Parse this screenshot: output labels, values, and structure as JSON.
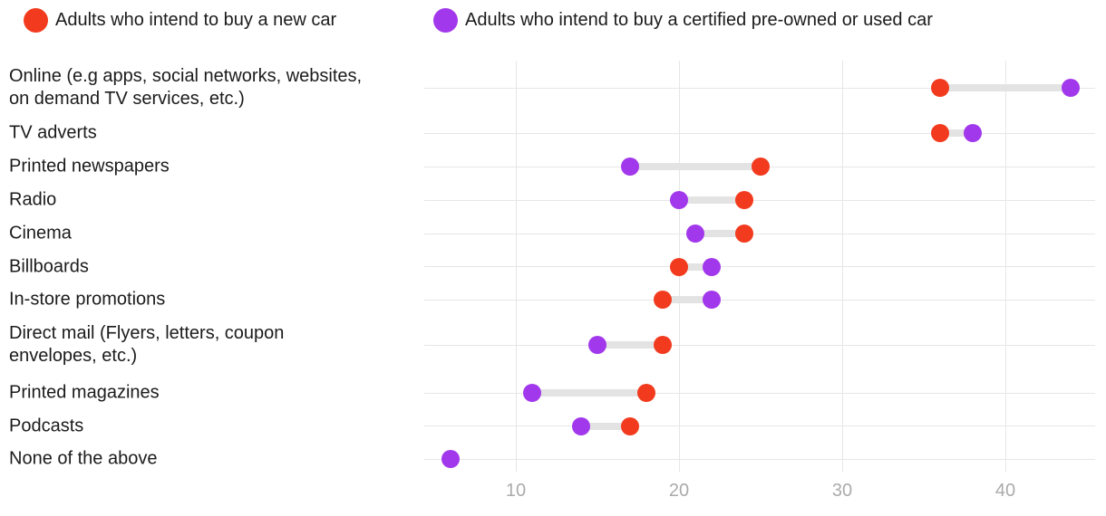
{
  "legend": [
    {
      "label": "Adults who intend to buy a new car",
      "color": "#f23b1e"
    },
    {
      "label": "Adults who intend to buy a certified pre-owned or used car",
      "color": "#a238eb"
    }
  ],
  "chart_data": {
    "type": "scatter",
    "variant": "dumbbell",
    "title": "",
    "xlabel": "",
    "ylabel": "",
    "categories": [
      "Online (e.g apps, social networks, websites, on demand TV services, etc.)",
      "TV adverts",
      "Printed newspapers",
      "Radio",
      "Cinema",
      "Billboards",
      "In-store promotions",
      "Direct mail (Flyers, letters, coupon envelopes, etc.)",
      "Printed magazines",
      "Podcasts",
      "None of the above"
    ],
    "series": [
      {
        "name": "Adults who intend to buy a new car",
        "color": "#f23b1e",
        "values": [
          36,
          36,
          25,
          24,
          24,
          20,
          19,
          19,
          18,
          17,
          null
        ]
      },
      {
        "name": "Adults who intend to buy a certified pre-owned or used car",
        "color": "#a238eb",
        "values": [
          44,
          38,
          17,
          20,
          21,
          22,
          22,
          15,
          11,
          14,
          6
        ]
      }
    ],
    "x_ticks": [
      10,
      20,
      30,
      40
    ],
    "xlim": [
      4.4,
      45.5
    ],
    "grid": "vertical-ticks-and-horizontal-row-lines",
    "legend_position": "top",
    "connector_color": "#e3e3e3",
    "gridline_color": "#e6e6e6",
    "tick_label_color": "#ababab"
  }
}
